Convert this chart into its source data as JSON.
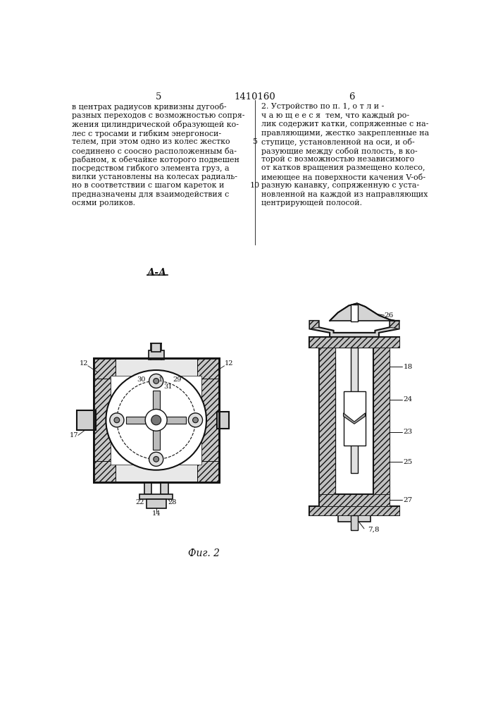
{
  "page_num_left": "5",
  "page_num_center": "1410160",
  "page_num_right": "6",
  "left_col_lines": [
    "в центрах радиусов кривизны дугооб-",
    "разных переходов с возможностью сопря-",
    "жения цилиндрической образующей ко-",
    "лес с тросами и гибким энергоноси-",
    "телем, при этом одно из колес жестко",
    "соединено с соосно расположенным ба-",
    "рабаном, к обечайке которого подвешен",
    "посредством гибкого элемента груз, а",
    "вилки установлены на колесах радиаль-",
    "но в соответствии с шагом кареток и",
    "предназначены для взаимодействия с",
    "осями роликов."
  ],
  "right_col_lines": [
    "2. Устройство по п. 1, о т л и -",
    "ч а ю щ е е с я  тем, что каждый ро-",
    "лик содержит катки, сопряженные с на-",
    "правляющими, жестко закрепленные на",
    "ступице, установленной на оси, и об-",
    "разующие между собой полость, в ко-",
    "торой с возможностью независимого",
    "от катков вращения размещено колесо,",
    "имеющее на поверхности качения V-об-",
    "разную канавку, сопряженную с уста-",
    "новленной на каждой из направляющих",
    "центрирующей полосой."
  ],
  "line_num_5": "5",
  "line_num_10": "10",
  "fig_label": "Фиг. 2",
  "aa_label": "А-А",
  "bg_color": "#ffffff",
  "text_color": "#111111",
  "line_color": "#111111"
}
